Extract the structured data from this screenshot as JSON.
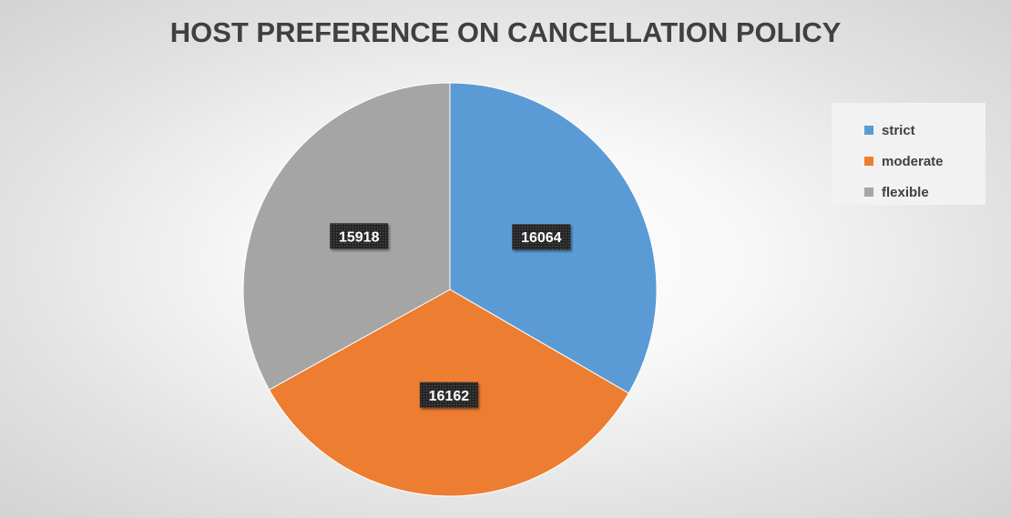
{
  "chart_data": {
    "type": "pie",
    "title": "HOST PREFERENCE ON CANCELLATION POLICY",
    "categories": [
      "strict",
      "moderate",
      "flexible"
    ],
    "values": [
      16064,
      16162,
      15918
    ],
    "colors": [
      "#5b9bd5",
      "#ed7d31",
      "#a5a5a5"
    ],
    "data_labels": [
      "16064",
      "16162",
      "15918"
    ],
    "legend": {
      "position": "right",
      "items": [
        {
          "label": "strict",
          "color": "#5b9bd5"
        },
        {
          "label": "moderate",
          "color": "#ed7d31"
        },
        {
          "label": "flexible",
          "color": "#a5a5a5"
        }
      ]
    }
  }
}
